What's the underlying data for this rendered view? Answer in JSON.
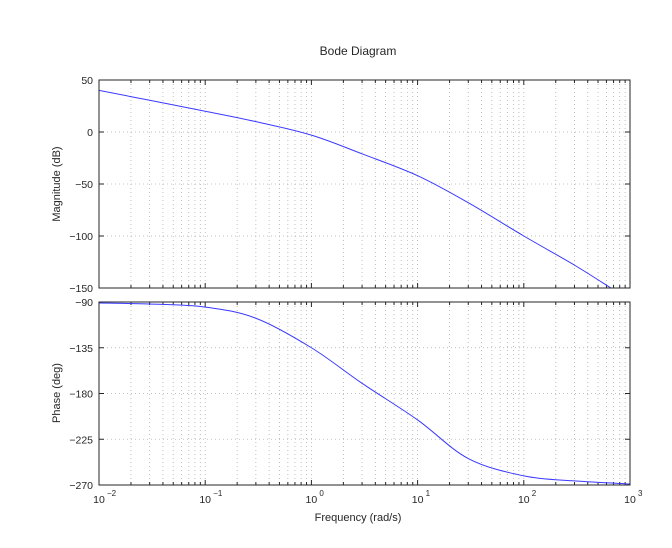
{
  "chart_data": {
    "type": "line",
    "title": "Bode Diagram",
    "xlabel": "Frequency  (rad/s)",
    "x_scale": "log",
    "grid": true,
    "x_ticks": [
      {
        "base": "10",
        "exp": "−2"
      },
      {
        "base": "10",
        "exp": "−1"
      },
      {
        "base": "10",
        "exp": "0"
      },
      {
        "base": "10",
        "exp": "1"
      },
      {
        "base": "10",
        "exp": "2"
      },
      {
        "base": "10",
        "exp": "3"
      }
    ],
    "magnitude": {
      "ylabel": "Magnitude (dB)",
      "ylim": [
        -150,
        50
      ],
      "yticks": [
        "50",
        "0",
        "−50",
        "−100",
        "−150"
      ],
      "x": [
        0.01,
        0.03,
        0.1,
        0.3,
        1,
        3,
        10,
        30,
        100,
        300,
        660
      ],
      "y": [
        40,
        30.5,
        20,
        10,
        -3,
        -21,
        -42,
        -68,
        -100,
        -128,
        -150
      ]
    },
    "phase": {
      "ylabel": "Phase (deg)",
      "ylim": [
        -270,
        -90
      ],
      "yticks": [
        "−90",
        "−135",
        "−180",
        "−225",
        "−270"
      ],
      "x": [
        0.01,
        0.03,
        0.1,
        0.3,
        1,
        3,
        10,
        30,
        100,
        300,
        1000
      ],
      "y": [
        -91,
        -92,
        -95,
        -106,
        -135,
        -170,
        -206,
        -244,
        -261,
        -266,
        -269
      ]
    }
  }
}
